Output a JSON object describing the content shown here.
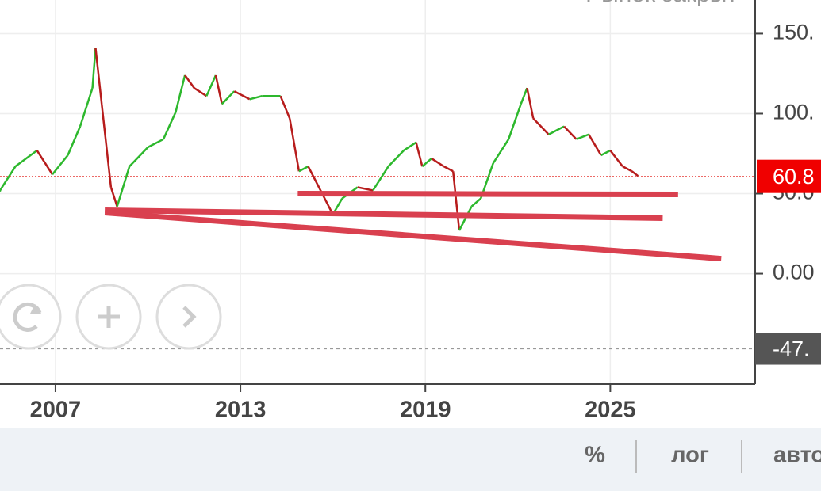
{
  "chart_data": {
    "type": "line",
    "status": "Рынок закрыт",
    "x": [
      2005.2,
      2005.7,
      2006.4,
      2006.9,
      2007.4,
      2007.8,
      2008.2,
      2008.3,
      2008.5,
      2008.8,
      2009.0,
      2009.4,
      2010.0,
      2010.5,
      2010.9,
      2011.2,
      2011.5,
      2011.9,
      2012.2,
      2012.4,
      2012.8,
      2013.3,
      2013.7,
      2014.3,
      2014.6,
      2014.9,
      2015.2,
      2015.6,
      2016.0,
      2016.3,
      2016.8,
      2017.3,
      2017.8,
      2018.3,
      2018.7,
      2018.9,
      2019.2,
      2019.6,
      2019.9,
      2020.1,
      2020.5,
      2020.8,
      2021.2,
      2021.7,
      2022.1,
      2022.3,
      2022.5,
      2023.0,
      2023.5,
      2023.9,
      2024.3,
      2024.7,
      2025.0,
      2025.4,
      2025.7,
      2025.9
    ],
    "values": [
      52,
      67,
      77,
      62,
      74,
      92,
      116,
      141,
      106,
      54,
      42,
      67,
      79,
      84,
      101,
      124,
      116,
      111,
      124,
      106,
      114,
      109,
      111,
      111,
      97,
      64,
      67,
      52,
      37,
      47,
      54,
      52,
      67,
      77,
      82,
      67,
      72,
      67,
      64,
      27,
      42,
      47,
      69,
      84,
      106,
      116,
      97,
      87,
      92,
      84,
      87,
      74,
      77,
      67,
      64,
      61
    ],
    "up_color": "#2db82d",
    "down_color": "#b71c1c",
    "xlim": [
      2005.2,
      2029.7
    ],
    "ylim": [
      -69,
      171
    ],
    "xticks": [
      2007,
      2013,
      2019,
      2025
    ],
    "yticks": [
      {
        "value": 150,
        "label": "150."
      },
      {
        "value": 100,
        "label": "100."
      },
      {
        "value": 50,
        "label": "50.0"
      },
      {
        "value": 0,
        "label": "0.00"
      }
    ],
    "grid": true,
    "last_value": 60.8,
    "crosshair": {
      "value": -47,
      "label": "-47."
    },
    "trendlines": [
      {
        "x": [
          2014.86,
          2027.2
        ],
        "y": [
          50,
          49.5
        ]
      },
      {
        "x": [
          2008.6,
          2026.7
        ],
        "y": [
          39.6,
          34.7
        ]
      },
      {
        "x": [
          2008.6,
          2028.6
        ],
        "y": [
          38.1,
          9.4
        ]
      }
    ],
    "trendline_color": "#d9404f",
    "toolbar": [
      "%",
      "лог",
      "авто"
    ]
  }
}
